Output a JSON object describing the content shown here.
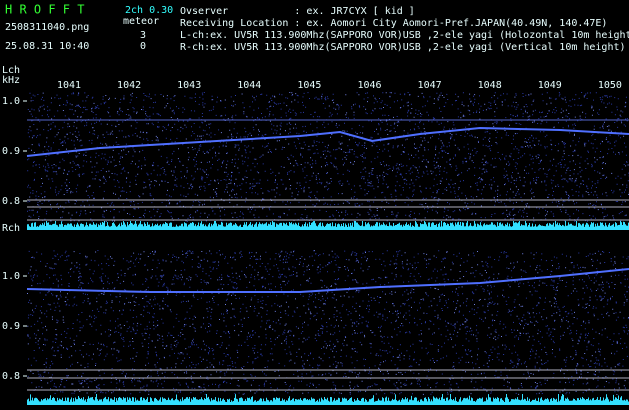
{
  "header": {
    "logo": "H R O F F T",
    "version": "2ch 0.30",
    "file": "2508311040.png",
    "meteor_label": "meteor",
    "lch_count": 3,
    "timestamp": "25.08.31 10:40",
    "rch_count": 0,
    "lines": [
      "Ovserver           : ex. JR7CYX [ kid ]",
      "Receiving Location : ex. Aomori City Aomori-Pref.JAPAN(40.49N, 140.47E)",
      "L-ch:ex. UV5R 113.900Mhz(SAPPORO VOR)USB ,2-ele yagi (Holozontal 10m height)",
      "R-ch:ex. UV5R 113.900Mhz(SAPPORO VOR)USB ,2-ele yagi (Vertical 10m height)"
    ]
  },
  "time_axis": [
    "1041",
    "1042",
    "1043",
    "1044",
    "1045",
    "1046",
    "1047",
    "1048",
    "1049",
    "1050"
  ],
  "panels": [
    {
      "channel": "Lch",
      "unit": "kHz",
      "freq_labels": [
        "1.0",
        "0.9",
        "0.8"
      ]
    },
    {
      "channel": "Rch",
      "freq_labels": [
        "1.0",
        "0.9",
        "0.8"
      ]
    }
  ]
}
